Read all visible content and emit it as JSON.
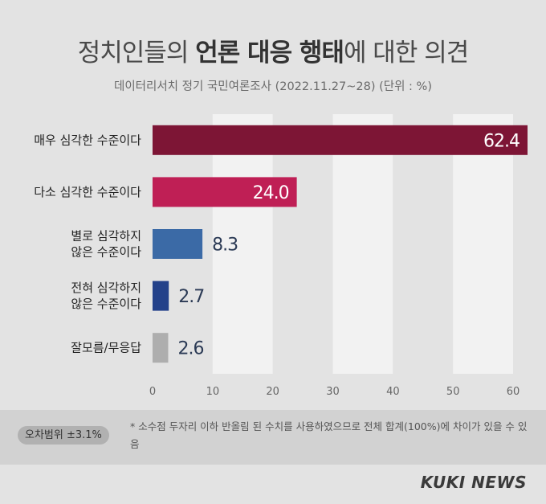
{
  "header": {
    "title_pre": "정치인들의 ",
    "title_bold": "언론 대응 행태",
    "title_post": "에 대한 의견",
    "subtitle": "데이터리서치 정기 국민여론조사 (2022.11.27~28)  (단위 : %)"
  },
  "chart_data": {
    "type": "bar",
    "orientation": "horizontal",
    "categories": [
      [
        "매우 심각한 수준이다"
      ],
      [
        "다소 심각한 수준이다"
      ],
      [
        "별로 심각하지",
        "않은 수준이다"
      ],
      [
        "전혀 심각하지",
        "않은 수준이다"
      ],
      [
        "잘모름/무응답"
      ]
    ],
    "values": [
      62.4,
      24.0,
      8.3,
      2.7,
      2.6
    ],
    "value_labels": [
      "62.4",
      "24.0",
      "8.3",
      "2.7",
      "2.6"
    ],
    "colors": [
      "#7d1535",
      "#bf1f55",
      "#3b6aa6",
      "#23418a",
      "#aeaeae"
    ],
    "xlim": [
      0,
      62.4
    ],
    "xticks": [
      0,
      10,
      20,
      30,
      40,
      50,
      60
    ],
    "grid": "alternating vertical bands",
    "band_colors": [
      "#e3e3e3",
      "#f2f2f2"
    ]
  },
  "footer": {
    "margin_of_error": "오차범위 ±3.1%",
    "note": "* 소수점 두자리 이하 반올림 된 수치를 사용하였으므로 전체 합계(100%)에 차이가 있을 수 있음",
    "brand": "KUKI NEWS"
  }
}
